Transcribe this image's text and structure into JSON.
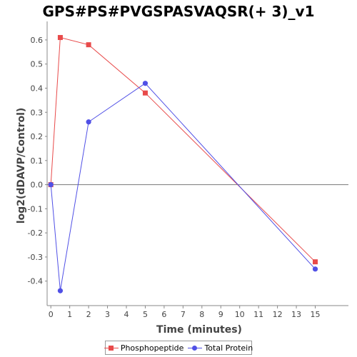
{
  "chart_data": {
    "type": "line",
    "title": "GPS#PS#PVGSPASVAQSR(+ 3)_v1",
    "xlabel": "Time (minutes)",
    "ylabel": "log2(dDAVP/Control)",
    "x_categories": [
      "0",
      "1",
      "2",
      "3",
      "4",
      "5",
      "6",
      "7",
      "8",
      "9",
      "10",
      "11",
      "12",
      "13",
      "15"
    ],
    "y_ticks": [
      "0.6",
      "0.5",
      "0.4",
      "0.3",
      "0.2",
      "0.1",
      "0.0",
      "-0.1",
      "-0.2",
      "-0.3",
      "-0.4"
    ],
    "ylim": [
      -0.49,
      0.65
    ],
    "grid": false,
    "legend_position": "bottom",
    "zero_line": true,
    "series": [
      {
        "name": "Phosphopeptide",
        "color": "#e84a4a",
        "marker": "square",
        "points": [
          {
            "x": 0,
            "y": 0.0
          },
          {
            "x": 0.5,
            "y": 0.61
          },
          {
            "x": 2,
            "y": 0.58
          },
          {
            "x": 5,
            "y": 0.38
          },
          {
            "x": 15,
            "y": -0.32
          }
        ]
      },
      {
        "name": "Total Protein",
        "color": "#5050e6",
        "marker": "circle",
        "points": [
          {
            "x": 0,
            "y": 0.0
          },
          {
            "x": 0.5,
            "y": -0.44
          },
          {
            "x": 2,
            "y": 0.26
          },
          {
            "x": 5,
            "y": 0.42
          },
          {
            "x": 15,
            "y": -0.35
          }
        ]
      }
    ]
  }
}
